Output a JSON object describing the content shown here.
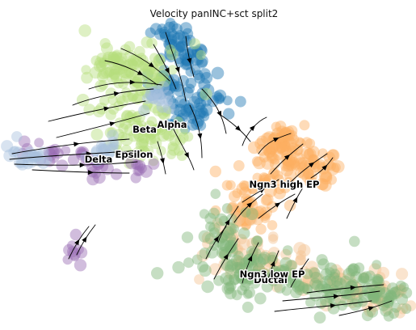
{
  "chart_data": {
    "type": "scatter",
    "title": "Velocity panINC+sct split2",
    "grid": false,
    "legend": "on data",
    "colors": {
      "Alpha": "#1f77b4",
      "Beta": "#b5de7c",
      "Delta": "#9a6db3",
      "Epsilon": "#a9c2de",
      "Ngn3 high EP": "#fdb062",
      "Ngn3 low EP": "#f4c393",
      "Ductal": "#80b579"
    },
    "series": [
      {
        "name": "Alpha"
      },
      {
        "name": "Beta"
      },
      {
        "name": "Delta"
      },
      {
        "name": "Epsilon"
      },
      {
        "name": "Ngn3 high EP"
      },
      {
        "name": "Ngn3 low EP"
      },
      {
        "name": "Ductal"
      }
    ]
  }
}
